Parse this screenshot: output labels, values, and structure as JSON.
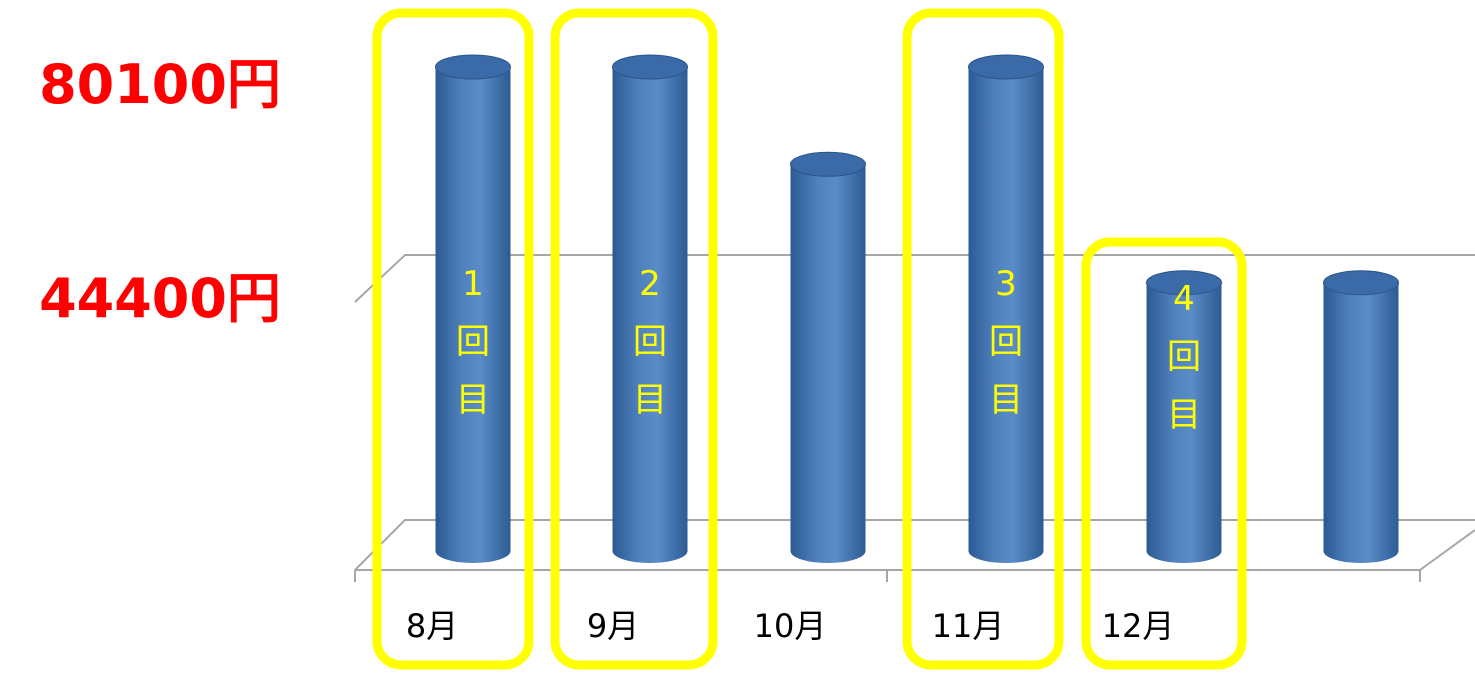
{
  "chart_data": {
    "type": "bar",
    "categories": [
      "8月",
      "9月",
      "10月",
      "11月",
      "12月",
      ""
    ],
    "values": [
      80100,
      80100,
      64000,
      80100,
      44400,
      44400
    ],
    "y_reference_labels": [
      {
        "value": 80100,
        "label": "80100円"
      },
      {
        "value": 44400,
        "label": "44400円"
      }
    ],
    "highlights": [
      {
        "index": 0,
        "label": "1回目"
      },
      {
        "index": 1,
        "label": "2回目"
      },
      {
        "index": 3,
        "label": "3回目"
      },
      {
        "index": 4,
        "label": "4回目"
      }
    ],
    "ylim": [
      0,
      80100
    ],
    "grid": true,
    "legend": "none"
  },
  "colors": {
    "bar": "#4f81bd",
    "bar_dark": "#2d5b93",
    "bar_top": "#3a6aa8",
    "highlight": "#ffff00",
    "ylabel": "#ff0000",
    "grid": "#a6a6a6"
  }
}
